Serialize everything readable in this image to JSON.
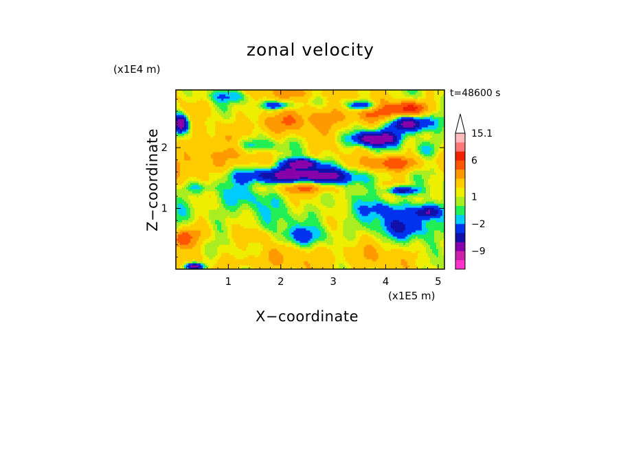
{
  "chart_data": {
    "type": "heatmap",
    "title": "zonal velocity",
    "xlabel": "X−coordinate",
    "ylabel": "Z−coordinate",
    "x_unit": "(x1E5 m)",
    "y_unit": "(x1E4 m)",
    "time_label": "t=48600 s",
    "xlim": [
      0,
      5.12
    ],
    "ylim": [
      0,
      2.95
    ],
    "x_ticks": [
      1,
      2,
      3,
      4,
      5
    ],
    "y_ticks": [
      1,
      2
    ],
    "colorbar": {
      "labels": [
        "15.1",
        "6",
        "1",
        "−2",
        "−9"
      ],
      "levels": [
        -15,
        -12,
        -9,
        -6,
        -4,
        -2,
        -1,
        0,
        1,
        2,
        4,
        6,
        9,
        12,
        15.1
      ],
      "colors": [
        "#ff33cc",
        "#cc22aa",
        "#8800aa",
        "#1111aa",
        "#0033ee",
        "#00ccff",
        "#22ee55",
        "#aaee22",
        "#eeee00",
        "#ffcc00",
        "#ff9900",
        "#ff5500",
        "#ee2200",
        "#ff7777",
        "#ffbbbb"
      ],
      "extend_top": true
    },
    "field_description": "two-dimensional contour map of zonal velocity over x in [0, 5.12]e5 m and z in [0, 2.95]e4 m"
  }
}
